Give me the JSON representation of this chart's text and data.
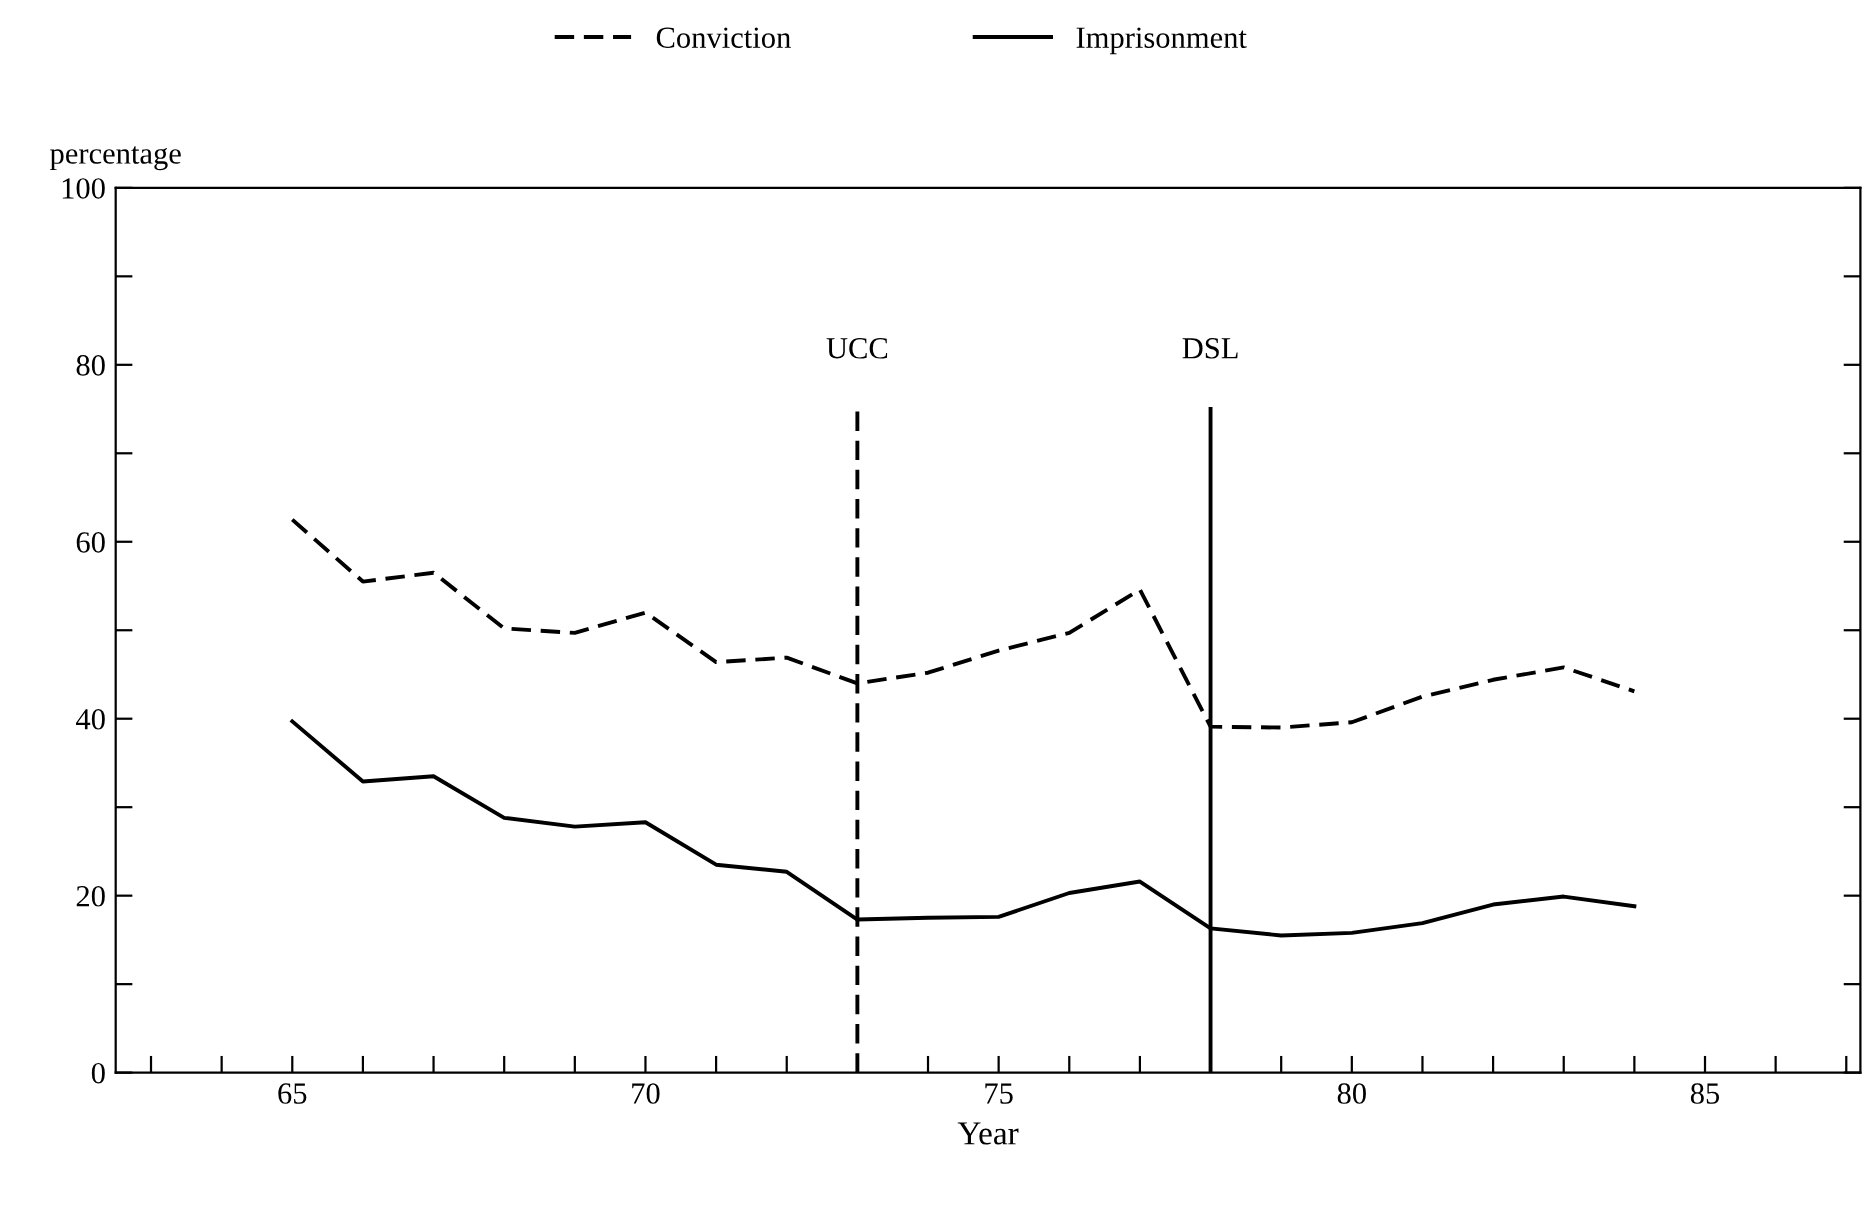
{
  "chart_data": {
    "type": "line",
    "xlabel": "Year",
    "ylabel": "percentage",
    "x": [
      65,
      66,
      67,
      68,
      69,
      70,
      71,
      72,
      73,
      74,
      75,
      76,
      77,
      78,
      79,
      80,
      81,
      82,
      83,
      84
    ],
    "series": [
      {
        "name": "Conviction",
        "color": "#000000",
        "line_style": "dashed",
        "values": [
          62.5,
          55.5,
          56.5,
          50.2,
          49.7,
          52.0,
          46.4,
          46.9,
          44.0,
          45.2,
          47.7,
          49.7,
          54.6,
          39.1,
          39.0,
          39.6,
          42.5,
          44.4,
          45.8,
          43.1
        ]
      },
      {
        "name": "Imprisonment",
        "color": "#000000",
        "line_style": "solid",
        "values": [
          39.7,
          32.9,
          33.5,
          28.8,
          27.8,
          28.3,
          23.5,
          22.7,
          17.3,
          17.5,
          17.6,
          20.3,
          21.6,
          16.3,
          15.5,
          15.8,
          16.9,
          19.0,
          19.9,
          18.8
        ]
      }
    ],
    "xlim": [
      62.5,
      87.2
    ],
    "xticks": [
      {
        "value": 63,
        "label": null
      },
      {
        "value": 64,
        "label": null
      },
      65,
      {
        "value": 66,
        "label": null
      },
      {
        "value": 67,
        "label": null
      },
      {
        "value": 68,
        "label": null
      },
      {
        "value": 69,
        "label": null
      },
      70,
      {
        "value": 71,
        "label": null
      },
      {
        "value": 72,
        "label": null
      },
      {
        "value": 73,
        "label": null
      },
      {
        "value": 74,
        "label": null
      },
      75,
      {
        "value": 76,
        "label": null
      },
      {
        "value": 77,
        "label": null
      },
      {
        "value": 78,
        "label": null
      },
      {
        "value": 79,
        "label": null
      },
      80,
      {
        "value": 81,
        "label": null
      },
      {
        "value": 82,
        "label": null
      },
      {
        "value": 83,
        "label": null
      },
      {
        "value": 84,
        "label": null
      },
      85,
      {
        "value": 86,
        "label": null
      },
      {
        "value": 87,
        "label": null
      }
    ],
    "ylim": [
      0,
      100
    ],
    "yticks": [
      0,
      {
        "value": 10,
        "label": null
      },
      20,
      {
        "value": 30,
        "label": null
      },
      40,
      {
        "value": 50,
        "label": null
      },
      60,
      {
        "value": 70,
        "label": null
      },
      80,
      {
        "value": 90,
        "label": null
      },
      100
    ],
    "ref_lines": [
      {
        "axis": "x",
        "value": 73,
        "label": "UCC",
        "line_style": "dashed",
        "color": "#000000"
      },
      {
        "axis": "x",
        "value": 78,
        "label": "DSL",
        "line_style": "solid",
        "color": "#000000"
      }
    ],
    "legend": "top",
    "grid": false,
    "marker": "none"
  }
}
